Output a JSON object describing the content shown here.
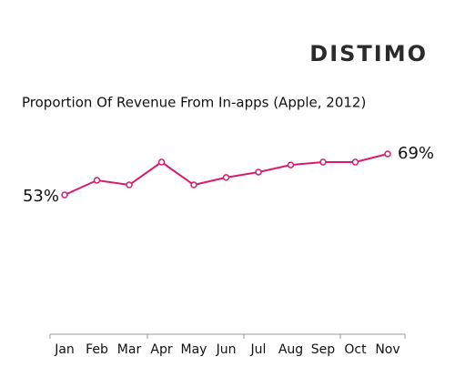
{
  "chart_data": {
    "type": "line",
    "logo": "DISTIMO",
    "title": "Proportion Of Revenue From In-apps (Apple, 2012)",
    "categories": [
      "Jan",
      "Feb",
      "Mar",
      "Apr",
      "May",
      "Jun",
      "Jul",
      "Aug",
      "Sep",
      "Oct",
      "Nov"
    ],
    "values": [
      53,
      58.7,
      56.9,
      65.8,
      56.9,
      59.8,
      61.9,
      64.7,
      65.8,
      65.8,
      69
    ],
    "value_labels": [
      "53%",
      null,
      null,
      null,
      null,
      null,
      null,
      null,
      null,
      null,
      "69%"
    ],
    "color": "#d81b6e"
  }
}
